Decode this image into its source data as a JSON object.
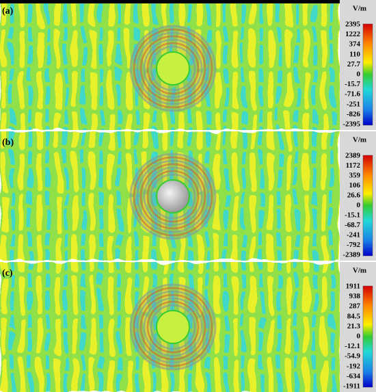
{
  "panels": [
    {
      "label": "(a)",
      "unit": "V/m",
      "ticks": [
        "2395",
        "1222",
        "374",
        "110",
        "27.7",
        "0",
        "-15.7",
        "-71.6",
        "-251",
        "-826",
        "-2395"
      ]
    },
    {
      "label": "(b)",
      "unit": "V/m",
      "ticks": [
        "2389",
        "1172",
        "359",
        "106",
        "26.6",
        "0",
        "-15.1",
        "-68.7",
        "-241",
        "-792",
        "-2389"
      ]
    },
    {
      "label": "(c)",
      "unit": "V/m",
      "ticks": [
        "1911",
        "938",
        "287",
        "84.5",
        "21.3",
        "0",
        "-12.1",
        "-54.9",
        "-192",
        "-634",
        "-1911"
      ]
    }
  ]
}
